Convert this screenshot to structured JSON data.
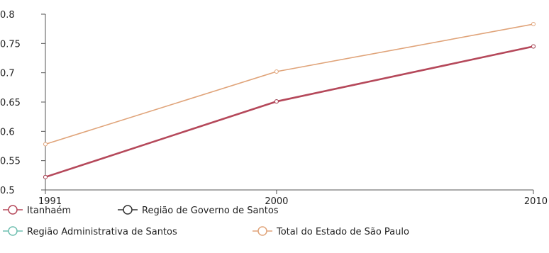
{
  "chart_data": {
    "type": "line",
    "title": "",
    "xlabel": "",
    "ylabel": "",
    "x": [
      "1991",
      "2000",
      "2010"
    ],
    "ylim": [
      0.5,
      0.8
    ],
    "yticks": [
      "0.5",
      "0.55",
      "0.6",
      "0.65",
      "0.7",
      "0.75",
      "0.8"
    ],
    "grid": false,
    "legend_position": "bottom",
    "series": [
      {
        "name": "Itanhaém",
        "values": [
          0.522,
          0.651,
          0.745
        ],
        "color": "#b5485a"
      },
      {
        "name": "Região de Governo de Santos",
        "values": [
          0.522,
          0.651,
          0.745
        ],
        "color": "#333333"
      },
      {
        "name": "Região Administrativa de Santos",
        "values": [
          0.522,
          0.651,
          0.745
        ],
        "color": "#6fbfb0"
      },
      {
        "name": "Total do Estado de São Paulo",
        "values": [
          0.578,
          0.702,
          0.783
        ],
        "color": "#e0a47a"
      }
    ]
  }
}
